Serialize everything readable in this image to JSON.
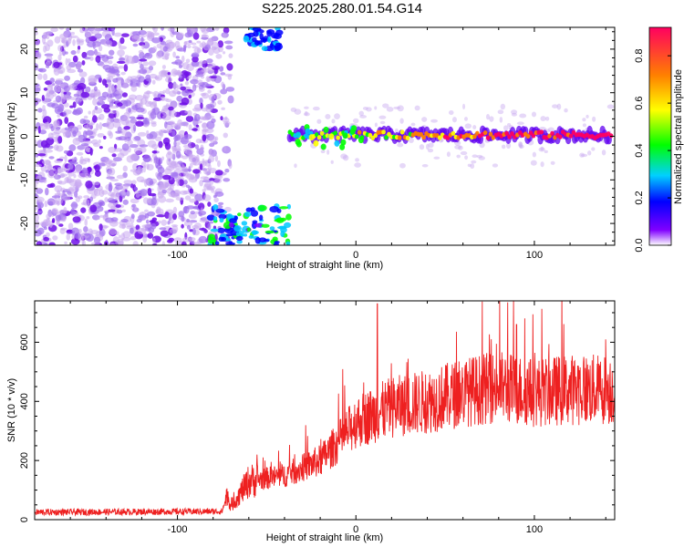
{
  "title": "S225.2025.280.01.54.G14",
  "chart_data": [
    {
      "type": "heatmap",
      "xlabel": "Height of straight line (km)",
      "ylabel": "Frequency (Hz)",
      "xlim": [
        -180,
        145
      ],
      "ylim": [
        -25,
        25
      ],
      "xticks": [
        -100,
        0,
        100
      ],
      "yticks": [
        -20,
        -10,
        0,
        10,
        20
      ],
      "colorbar": {
        "label": "Normalized spectral amplitude",
        "range": [
          0,
          0.92
        ],
        "ticks": [
          0.0,
          0.2,
          0.4,
          0.6,
          0.8
        ],
        "colormap": [
          "#ffffff",
          "#7f00ff",
          "#0000ff",
          "#00c8ff",
          "#00ff00",
          "#ffff00",
          "#ff7f00",
          "#ff0060"
        ]
      },
      "features": {
        "noise_region_x": [
          -180,
          -70
        ],
        "low_cluster": {
          "x": [
            -82,
            -37
          ],
          "y": [
            -25,
            -16
          ]
        },
        "top_cluster": {
          "x": [
            -62,
            -40
          ],
          "y": [
            20,
            25
          ]
        },
        "ridge": {
          "x": [
            -37,
            143
          ],
          "y": 0.3
        }
      }
    },
    {
      "type": "line",
      "xlabel": "Height of straight line (km)",
      "ylabel": "SNR (10 * v/v)",
      "xlim": [
        -180,
        145
      ],
      "ylim": [
        0,
        740
      ],
      "xticks": [
        -100,
        0,
        100
      ],
      "yticks": [
        0,
        200,
        400,
        600
      ],
      "color": "#ee2020",
      "profile": {
        "x": [
          -180,
          -75,
          -72,
          -70,
          -60,
          -40,
          -20,
          -10,
          0,
          20,
          40,
          60,
          80,
          100,
          120,
          145
        ],
        "y": [
          25,
          28,
          85,
          45,
          130,
          150,
          200,
          260,
          330,
          380,
          400,
          430,
          450,
          430,
          440,
          440
        ]
      },
      "peaks": [
        {
          "x": 12,
          "y": 730
        },
        {
          "x": 85,
          "y": 735
        },
        {
          "x": 90,
          "y": 660
        },
        {
          "x": 140,
          "y": 610
        }
      ]
    }
  ]
}
